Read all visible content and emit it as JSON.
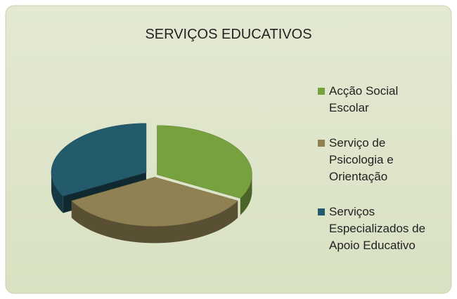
{
  "chart_data": {
    "type": "pie",
    "title": "SERVIÇOS EDUCATIVOS",
    "categories": [
      "Acção Social Escolar",
      "Serviço de Psicologia e Orientação",
      "Serviços Especializados de Apoio Educativo"
    ],
    "values": [
      33,
      34,
      33
    ],
    "colors": [
      "#77a03f",
      "#8f8152",
      "#235a6c"
    ],
    "legend": "right"
  }
}
